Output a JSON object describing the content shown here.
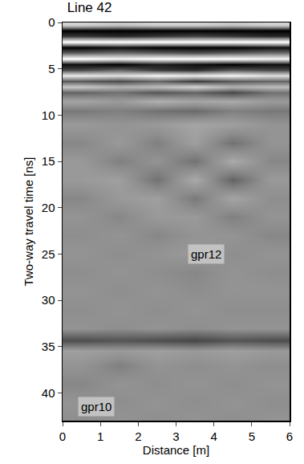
{
  "chart_data": {
    "type": "heatmap",
    "title": "Line 42",
    "x_label": "Distance [m]",
    "y_label": "Two-way travel time [ns]",
    "x": [
      0.5,
      1.5,
      2.5,
      3.5,
      4.5,
      5.5
    ],
    "y": [
      0.3,
      0.9,
      1.5,
      2.1,
      2.7,
      3.3,
      3.9,
      4.5,
      5.1,
      5.7,
      6.3,
      6.9,
      7.5,
      8.5,
      9.5,
      11,
      13,
      15,
      17,
      19,
      21,
      23,
      25,
      27,
      29,
      31,
      33,
      34.3,
      35.5,
      37,
      39,
      41,
      43
    ],
    "z": [
      [
        0.6,
        0.5,
        0.6,
        0.6,
        0.5,
        0.6
      ],
      [
        -1,
        -1,
        -1,
        -1,
        -1,
        -1
      ],
      [
        -0.6,
        -0.7,
        -0.6,
        -0.5,
        -0.6,
        -0.7
      ],
      [
        1,
        1,
        1,
        1,
        1,
        1
      ],
      [
        -1,
        -0.9,
        -1,
        -1,
        -1,
        -0.9
      ],
      [
        -0.3,
        -0.2,
        -0.3,
        -0.4,
        -0.3,
        -0.2
      ],
      [
        1,
        0.9,
        1,
        1,
        1,
        0.9
      ],
      [
        -0.9,
        -1,
        -0.8,
        -0.9,
        -1,
        -0.9
      ],
      [
        -0.5,
        -0.3,
        -0.6,
        -0.7,
        -0.4,
        -0.5
      ],
      [
        0.8,
        0.7,
        0.9,
        0.8,
        0.9,
        0.7
      ],
      [
        -0.4,
        -0.5,
        -0.3,
        -0.6,
        -0.4,
        -0.3
      ],
      [
        0.5,
        0.3,
        0.4,
        0.6,
        0.3,
        0.4
      ],
      [
        -0.3,
        -0.2,
        -0.4,
        -0.3,
        -0.5,
        -0.2
      ],
      [
        0.2,
        0.1,
        0.3,
        0.2,
        0.25,
        0.1
      ],
      [
        -0.15,
        -0.1,
        -0.2,
        -0.25,
        -0.1,
        -0.15
      ],
      [
        0.1,
        0.05,
        0.1,
        0.2,
        0.15,
        0.05
      ],
      [
        -0.05,
        0.1,
        -0.1,
        0.15,
        -0.2,
        0.05
      ],
      [
        0.1,
        -0.1,
        0.05,
        -0.2,
        0.25,
        -0.05
      ],
      [
        0.1,
        0.15,
        -0.2,
        0.25,
        -0.3,
        0.1
      ],
      [
        -0.05,
        0.1,
        0.15,
        -0.15,
        0.2,
        0
      ],
      [
        0.05,
        -0.05,
        0.1,
        0.1,
        -0.1,
        0.05
      ],
      [
        0,
        0.05,
        -0.05,
        0.05,
        0.05,
        -0.05
      ],
      [
        0.05,
        0,
        0.05,
        0.1,
        0,
        0.05
      ],
      [
        0,
        0.05,
        0,
        -0.05,
        0.05,
        0
      ],
      [
        0.05,
        0,
        0.05,
        0,
        0.05,
        0.05
      ],
      [
        0,
        0.05,
        0,
        0.05,
        0,
        0
      ],
      [
        0.05,
        0,
        0.05,
        0,
        0.05,
        0.05
      ],
      [
        -0.45,
        -0.4,
        -0.45,
        -0.5,
        -0.4,
        -0.45
      ],
      [
        0.15,
        0.1,
        0.15,
        0.1,
        0.15,
        0.1
      ],
      [
        0.05,
        -0.1,
        0.05,
        0,
        0.05,
        0
      ],
      [
        -0.05,
        0.05,
        0,
        0.05,
        0,
        0.05
      ],
      [
        0.05,
        0,
        0.05,
        0,
        0.05,
        0
      ],
      [
        0,
        0.05,
        0,
        0.05,
        0,
        0.05
      ]
    ],
    "zlim": [
      -1,
      1
    ],
    "xlim": [
      0,
      6
    ],
    "xticks": [
      0,
      1,
      2,
      3,
      4,
      5,
      6
    ],
    "ylim": [
      43,
      0
    ],
    "yticks": [
      0,
      5,
      10,
      15,
      20,
      25,
      30,
      35,
      40
    ],
    "annotations": [
      {
        "text": "gpr12",
        "x": 3.8,
        "y": 25
      },
      {
        "text": "gpr10",
        "x": 0.9,
        "y": 41.5
      }
    ]
  }
}
